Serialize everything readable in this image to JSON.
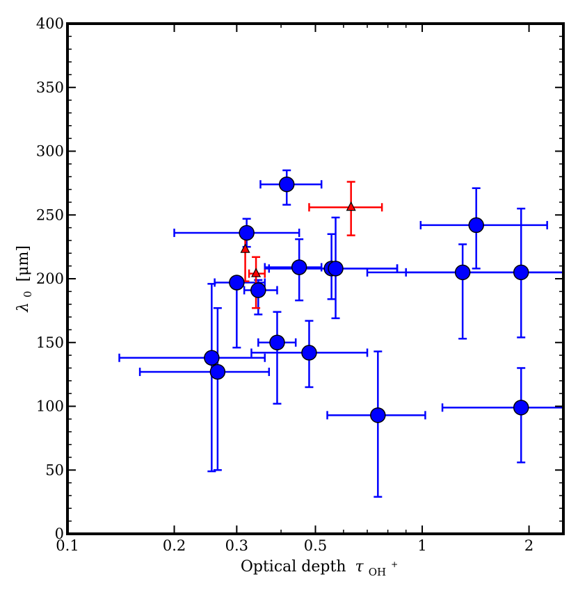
{
  "chart_data": {
    "type": "scatter",
    "title": "",
    "xlabel": "Optical depth",
    "xlabel_symbol": "τ",
    "xlabel_subscript": "OH",
    "xlabel_superscript": "+",
    "ylabel": "λ0 [μm]",
    "ylabel_symbol": "λ",
    "ylabel_subscript": "0",
    "ylabel_unit": "[μm]",
    "xscale": "log",
    "xlim": [
      0.1,
      2.5
    ],
    "ylim": [
      0,
      400
    ],
    "x_ticks": [
      {
        "value": 0.1,
        "label": "0.1"
      },
      {
        "value": 0.2,
        "label": "0.2"
      },
      {
        "value": 0.3,
        "label": "0.3"
      },
      {
        "value": 0.5,
        "label": "0.5"
      },
      {
        "value": 1,
        "label": "1"
      },
      {
        "value": 2,
        "label": "2"
      }
    ],
    "x_minor_ticks": [
      0.4,
      0.6,
      0.7,
      0.8,
      0.9
    ],
    "y_ticks": [
      {
        "value": 0,
        "label": "0"
      },
      {
        "value": 50,
        "label": "50"
      },
      {
        "value": 100,
        "label": "100"
      },
      {
        "value": 150,
        "label": "150"
      },
      {
        "value": 200,
        "label": "200"
      },
      {
        "value": 250,
        "label": "250"
      },
      {
        "value": 300,
        "label": "300"
      },
      {
        "value": 350,
        "label": "350"
      },
      {
        "value": 400,
        "label": "400"
      }
    ],
    "grid": false,
    "series": [
      {
        "name": "blue-circles",
        "color": "#0000ff",
        "marker": "circle",
        "points": [
          {
            "x": 0.415,
            "y": 274,
            "xlo": 0.35,
            "xhi": 0.52,
            "ylo": 258,
            "yhi": 285
          },
          {
            "x": 0.32,
            "y": 236,
            "xlo": 0.2,
            "xhi": 0.45,
            "ylo": 225,
            "yhi": 247
          },
          {
            "x": 1.42,
            "y": 242,
            "xlo": 0.99,
            "xhi": 2.25,
            "ylo": 208,
            "yhi": 271
          },
          {
            "x": 0.3,
            "y": 197,
            "xlo": 0.26,
            "xhi": 0.36,
            "ylo": 146,
            "yhi": 198
          },
          {
            "x": 0.345,
            "y": 191,
            "xlo": 0.315,
            "xhi": 0.39,
            "ylo": 172,
            "yhi": 199
          },
          {
            "x": 0.45,
            "y": 209,
            "xlo": 0.36,
            "xhi": 0.52,
            "ylo": 183,
            "yhi": 231
          },
          {
            "x": 0.555,
            "y": 208,
            "xlo": 0.36,
            "xhi": 0.85,
            "ylo": 184,
            "yhi": 235
          },
          {
            "x": 0.57,
            "y": 208,
            "xlo": 0.37,
            "xhi": 0.85,
            "ylo": 169,
            "yhi": 248
          },
          {
            "x": 1.3,
            "y": 205,
            "xlo": 0.7,
            "xhi": 2.5,
            "ylo": 153,
            "yhi": 227
          },
          {
            "x": 1.9,
            "y": 205,
            "xlo": 0.9,
            "xhi": 2.5,
            "ylo": 154,
            "yhi": 255
          },
          {
            "x": 0.39,
            "y": 150,
            "xlo": 0.345,
            "xhi": 0.44,
            "ylo": 102,
            "yhi": 174
          },
          {
            "x": 0.48,
            "y": 142,
            "xlo": 0.33,
            "xhi": 0.7,
            "ylo": 115,
            "yhi": 167
          },
          {
            "x": 0.255,
            "y": 138,
            "xlo": 0.14,
            "xhi": 0.36,
            "ylo": 49,
            "yhi": 196
          },
          {
            "x": 0.265,
            "y": 127,
            "xlo": 0.16,
            "xhi": 0.37,
            "ylo": 50,
            "yhi": 177
          },
          {
            "x": 0.75,
            "y": 93,
            "xlo": 0.54,
            "xhi": 1.02,
            "ylo": 29,
            "yhi": 143
          },
          {
            "x": 1.9,
            "y": 99,
            "xlo": 1.14,
            "xhi": 2.5,
            "ylo": 56,
            "yhi": 130
          }
        ]
      },
      {
        "name": "red-triangles",
        "color": "#ff0000",
        "marker": "triangle",
        "points": [
          {
            "x": 0.63,
            "y": 256,
            "xlo": 0.48,
            "xhi": 0.77,
            "ylo": 234,
            "yhi": 276
          },
          {
            "x": 0.317,
            "y": 223,
            "xlo": 0.317,
            "xhi": 0.317,
            "ylo": 198,
            "yhi": 232
          },
          {
            "x": 0.34,
            "y": 204,
            "xlo": 0.325,
            "xhi": 0.36,
            "ylo": 177,
            "yhi": 217
          }
        ]
      }
    ]
  }
}
